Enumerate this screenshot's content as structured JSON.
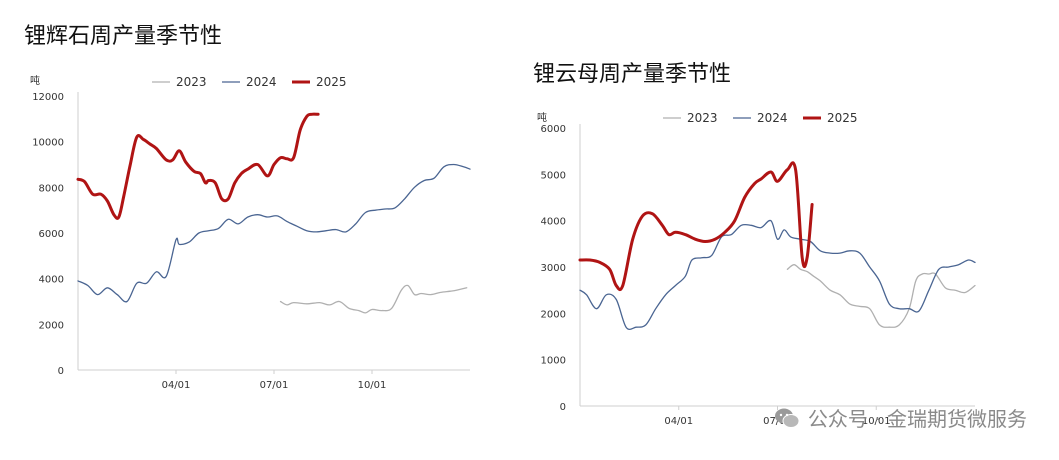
{
  "chart_data": [
    {
      "type": "line",
      "title": "锂辉石周产量季节性",
      "unit": "吨",
      "ylim": [
        0,
        12000
      ],
      "yticks": [
        0,
        2000,
        4000,
        6000,
        8000,
        10000,
        12000
      ],
      "xticks": [
        "04/01",
        "07/01",
        "10/01"
      ],
      "x_range_months": [
        1,
        13
      ],
      "series": [
        {
          "name": "2023",
          "color": "#b0b0b0",
          "width": 1.3,
          "x": [
            7.2,
            7.4,
            7.6,
            8.0,
            8.4,
            8.7,
            9.0,
            9.3,
            9.6,
            9.8,
            10.0,
            10.3,
            10.6,
            10.9,
            11.1,
            11.3,
            11.5,
            11.8,
            12.1,
            12.4,
            12.6,
            12.9
          ],
          "values": [
            3000,
            2850,
            2950,
            2900,
            2950,
            2850,
            3000,
            2700,
            2600,
            2500,
            2650,
            2600,
            2700,
            3500,
            3700,
            3300,
            3350,
            3300,
            3400,
            3450,
            3500,
            3600
          ]
        },
        {
          "name": "2024",
          "color": "#4a6592",
          "width": 1.3,
          "x": [
            1.0,
            1.3,
            1.6,
            1.9,
            2.2,
            2.5,
            2.8,
            3.1,
            3.4,
            3.7,
            4.0,
            4.1,
            4.4,
            4.7,
            5.0,
            5.3,
            5.6,
            5.9,
            6.2,
            6.5,
            6.8,
            7.1,
            7.4,
            7.7,
            8.0,
            8.3,
            8.6,
            8.9,
            9.2,
            9.5,
            9.8,
            10.1,
            10.4,
            10.7,
            11.0,
            11.3,
            11.6,
            11.9,
            12.2,
            12.5,
            12.8,
            13.0
          ],
          "values": [
            3900,
            3700,
            3300,
            3600,
            3300,
            3000,
            3800,
            3800,
            4300,
            4100,
            5700,
            5500,
            5600,
            6000,
            6100,
            6200,
            6600,
            6400,
            6700,
            6800,
            6700,
            6750,
            6500,
            6300,
            6100,
            6050,
            6100,
            6150,
            6050,
            6400,
            6900,
            7000,
            7050,
            7100,
            7500,
            8000,
            8300,
            8400,
            8900,
            9000,
            8900,
            8800
          ]
        },
        {
          "name": "2025",
          "color": "#b01414",
          "width": 3,
          "x": [
            1.0,
            1.2,
            1.45,
            1.7,
            1.9,
            2.1,
            2.25,
            2.4,
            2.6,
            2.8,
            3.0,
            3.2,
            3.4,
            3.7,
            3.9,
            4.1,
            4.3,
            4.55,
            4.75,
            4.9,
            5.0,
            5.2,
            5.4,
            5.6,
            5.8,
            6.0,
            6.2,
            6.5,
            6.8,
            7.0,
            7.2,
            7.4,
            7.6,
            7.8,
            8.0,
            8.15,
            8.35
          ],
          "values": [
            8350,
            8250,
            7700,
            7700,
            7400,
            6800,
            6700,
            7600,
            9000,
            10200,
            10100,
            9900,
            9700,
            9200,
            9200,
            9600,
            9100,
            8700,
            8600,
            8200,
            8300,
            8200,
            7500,
            7500,
            8200,
            8600,
            8800,
            9000,
            8500,
            9000,
            9300,
            9250,
            9300,
            10500,
            11100,
            11200,
            11200
          ]
        }
      ]
    },
    {
      "type": "line",
      "title": "锂云母周产量季节性",
      "unit": "吨",
      "ylim": [
        0,
        6000
      ],
      "yticks": [
        0,
        1000,
        2000,
        3000,
        4000,
        5000,
        6000
      ],
      "xticks": [
        "04/01",
        "07/01",
        "10/01"
      ],
      "x_range_months": [
        1,
        13
      ],
      "series": [
        {
          "name": "2023",
          "color": "#b0b0b0",
          "width": 1.3,
          "x": [
            7.3,
            7.5,
            7.7,
            7.9,
            8.1,
            8.3,
            8.6,
            8.9,
            9.2,
            9.5,
            9.8,
            10.1,
            10.4,
            10.7,
            11.0,
            11.2,
            11.4,
            11.6,
            11.8,
            12.1,
            12.4,
            12.7,
            13.0
          ],
          "values": [
            2950,
            3050,
            2950,
            2900,
            2800,
            2700,
            2500,
            2400,
            2200,
            2150,
            2100,
            1750,
            1700,
            1750,
            2100,
            2700,
            2850,
            2850,
            2850,
            2550,
            2500,
            2450,
            2600
          ]
        },
        {
          "name": "2024",
          "color": "#4a6592",
          "width": 1.3,
          "x": [
            1.0,
            1.2,
            1.5,
            1.8,
            2.1,
            2.4,
            2.7,
            3.0,
            3.3,
            3.6,
            3.9,
            4.2,
            4.4,
            4.7,
            5.0,
            5.3,
            5.6,
            5.9,
            6.2,
            6.5,
            6.8,
            7.0,
            7.2,
            7.4,
            7.7,
            8.0,
            8.3,
            8.6,
            8.9,
            9.2,
            9.5,
            9.8,
            10.1,
            10.4,
            10.7,
            11.0,
            11.3,
            11.6,
            11.9,
            12.2,
            12.5,
            12.8,
            13.0
          ],
          "values": [
            2500,
            2400,
            2100,
            2400,
            2300,
            1700,
            1700,
            1750,
            2100,
            2400,
            2600,
            2800,
            3150,
            3200,
            3250,
            3650,
            3700,
            3900,
            3900,
            3850,
            4000,
            3600,
            3800,
            3650,
            3600,
            3550,
            3350,
            3300,
            3300,
            3350,
            3300,
            3000,
            2700,
            2200,
            2100,
            2100,
            2050,
            2500,
            2950,
            3000,
            3050,
            3150,
            3100
          ]
        },
        {
          "name": "2025",
          "color": "#b01414",
          "width": 3,
          "x": [
            1.0,
            1.3,
            1.6,
            1.9,
            2.1,
            2.3,
            2.6,
            2.9,
            3.2,
            3.5,
            3.7,
            3.9,
            4.2,
            4.5,
            4.8,
            5.1,
            5.4,
            5.7,
            6.0,
            6.3,
            6.5,
            6.8,
            7.0,
            7.3,
            7.55,
            7.75,
            7.9,
            8.05
          ],
          "values": [
            3150,
            3150,
            3100,
            2950,
            2600,
            2600,
            3600,
            4100,
            4150,
            3900,
            3700,
            3750,
            3700,
            3600,
            3550,
            3600,
            3750,
            4000,
            4500,
            4800,
            4900,
            5050,
            4850,
            5100,
            5100,
            3200,
            3200,
            4350
          ]
        }
      ]
    }
  ],
  "watermark": "公众号 · 金瑞期货微服务"
}
